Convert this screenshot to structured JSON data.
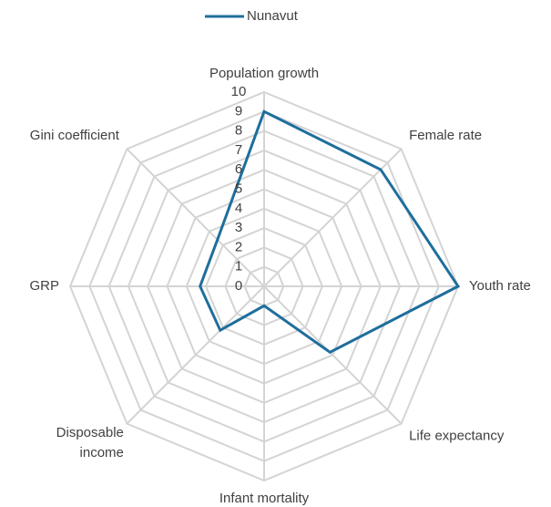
{
  "chart_data": {
    "type": "radar",
    "categories": [
      "Population growth",
      "Female rate",
      "Youth rate",
      "Life expectancy",
      "Infant mortality",
      "Disposable income",
      "GRP",
      "Gini coefficient"
    ],
    "series": [
      {
        "name": "Nunavut",
        "color": "#1f6e9c",
        "values": [
          9,
          8.5,
          10,
          4.8,
          1,
          3.2,
          3.3,
          3.4
        ]
      }
    ],
    "rlim": [
      0,
      10
    ],
    "rticks": [
      0,
      1,
      2,
      3,
      4,
      5,
      6,
      7,
      8,
      9,
      10
    ],
    "grid": true,
    "legend": "top"
  }
}
